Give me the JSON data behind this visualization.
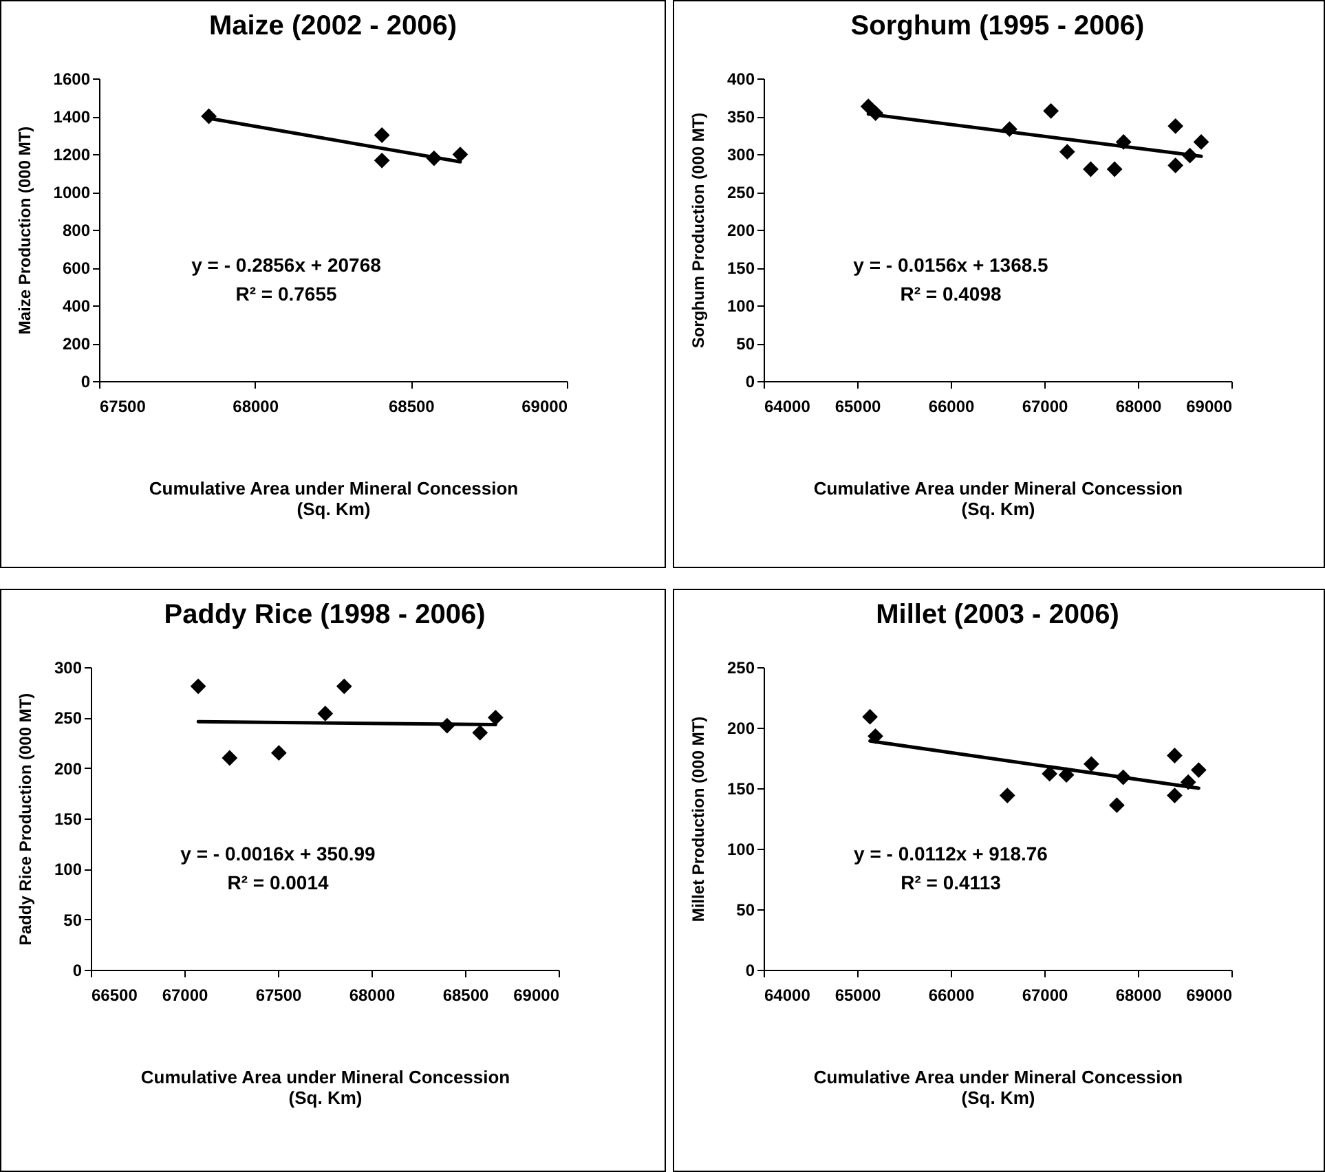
{
  "chart_data": [
    {
      "type": "scatter",
      "title": "Maize (2002 - 2006)",
      "xlabel": "Cumulative  Area  under  Mineral  Concession\n(Sq. Km)",
      "ylabel": "Maize  Production  (000 MT)",
      "marker": "diamond",
      "line_style": "solid",
      "xlim": [
        67500,
        69000
      ],
      "xticks": [
        67500,
        68000,
        68500,
        69000
      ],
      "ylim": [
        0,
        1600
      ],
      "yticks": [
        0,
        200,
        400,
        600,
        800,
        1000,
        1200,
        1400,
        1600
      ],
      "annotations": [
        "y = - 0.2856x + 20768",
        "R² = 0.7655"
      ],
      "series": [
        {
          "color": "#000000",
          "x": [
            67852,
            68407,
            68407,
            68574,
            68658
          ],
          "values": [
            1400,
            1300,
            1166,
            1178,
            1198
          ]
        },
        {
          "type": "line",
          "marker": "none",
          "color": "#000000",
          "x": [
            67852,
            68658
          ],
          "values": [
            1389,
            1159
          ]
        }
      ]
    },
    {
      "type": "scatter",
      "title": "Sorghum (1995 - 2006)",
      "xlabel": "Cumulative  Area  under  Mineral  Concession\n(Sq. Km)",
      "ylabel": "Sorghum  Production  (000 MT)",
      "marker": "diamond",
      "line_style": "solid",
      "xlim": [
        64000,
        69000
      ],
      "xticks": [
        64000,
        65000,
        66000,
        67000,
        68000,
        69000
      ],
      "ylim": [
        0,
        400
      ],
      "yticks": [
        0,
        50,
        100,
        150,
        200,
        250,
        300,
        350,
        400
      ],
      "annotations": [
        "y = - 0.0156x + 1368.5",
        "R² = 0.4098"
      ],
      "series": [
        {
          "color": "#000000",
          "x": [
            65119,
            65196,
            66628,
            67071,
            67245,
            67496,
            67751,
            67847,
            68402,
            68402,
            68556,
            68677
          ],
          "values": [
            363,
            354,
            333,
            357,
            303,
            280,
            280,
            316,
            337,
            285,
            298,
            316
          ]
        },
        {
          "type": "line",
          "marker": "none",
          "color": "#000000",
          "x": [
            65119,
            68677
          ],
          "values": [
            353,
            297
          ]
        }
      ]
    },
    {
      "type": "scatter",
      "title": "Paddy Rice (1998 - 2006)",
      "xlabel": "Cumulative  Area  under  Mineral  Concession\n(Sq. Km)",
      "ylabel": "Paddy  Rice  Production  (000 MT)",
      "marker": "diamond",
      "line_style": "solid",
      "xlim": [
        66500,
        69000
      ],
      "xticks": [
        66500,
        67000,
        67500,
        68000,
        68500,
        69000
      ],
      "ylim": [
        0,
        300
      ],
      "yticks": [
        0,
        50,
        100,
        150,
        200,
        250,
        300
      ],
      "annotations": [
        "y = - 0.0016x + 350.99",
        "R² = 0.0014"
      ],
      "series": [
        {
          "color": "#000000",
          "x": [
            67074,
            67242,
            67505,
            67753,
            67854,
            68404,
            68580,
            68663
          ],
          "values": [
            281,
            210,
            215,
            254,
            281,
            242,
            235,
            250
          ]
        },
        {
          "type": "line",
          "marker": "none",
          "color": "#000000",
          "x": [
            67074,
            68663
          ],
          "values": [
            246,
            243
          ]
        }
      ]
    },
    {
      "type": "scatter",
      "title": "Millet (2003 - 2006)",
      "xlabel": "Cumulative Area under Mineral Concession\n(Sq. Km)",
      "ylabel": "Millet Production (000 MT)",
      "marker": "diamond",
      "line_style": "solid",
      "xlim": [
        64000,
        69000
      ],
      "xticks": [
        64000,
        65000,
        66000,
        67000,
        68000,
        69000
      ],
      "ylim": [
        0,
        250
      ],
      "yticks": [
        0,
        50,
        100,
        150,
        200,
        250
      ],
      "annotations": [
        "y = - 0.0112x + 918.76",
        "R² = 0.4113"
      ],
      "series": [
        {
          "color": "#000000",
          "x": [
            65137,
            65195,
            66605,
            67056,
            67236,
            67503,
            67775,
            67843,
            68393,
            68393,
            68538,
            68650
          ],
          "values": [
            209,
            193,
            144,
            162,
            161,
            170,
            136,
            159,
            177,
            144,
            155,
            165
          ]
        },
        {
          "type": "line",
          "marker": "none",
          "color": "#000000",
          "x": [
            65137,
            68650
          ],
          "values": [
            189,
            150
          ]
        }
      ]
    }
  ]
}
